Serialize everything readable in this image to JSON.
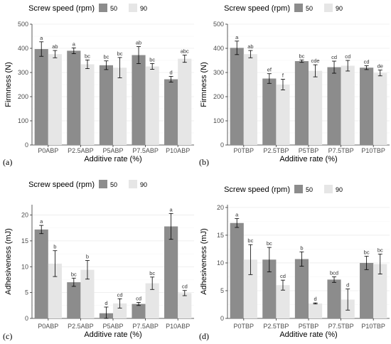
{
  "colors": {
    "series_50": "#8c8c8c",
    "series_90": "#e6e6e6",
    "panel_bg": "#ffffff",
    "grid": "#ebebeb",
    "axis": "#333333",
    "errorbar": "#000000"
  },
  "chart_data": [
    {
      "panel": "(a)",
      "type": "bar",
      "legend_title": "Screw speed (rpm)",
      "legend_placement": "top",
      "xlabel": "Additive rate (%)",
      "ylabel": "Firmness (N)",
      "ylim": [
        0,
        500
      ],
      "yticks": [
        0,
        100,
        200,
        300,
        400,
        500
      ],
      "categories": [
        "P0ABP",
        "P2.5ABP",
        "P5ABP",
        "P7.5ABP",
        "P10ABP"
      ],
      "series": [
        {
          "name": "50",
          "values": [
            397,
            390,
            330,
            372,
            272
          ],
          "errors": [
            30,
            12,
            18,
            35,
            12
          ],
          "labels": [
            "a",
            "a",
            "bc",
            "ab",
            "d"
          ]
        },
        {
          "name": "90",
          "values": [
            376,
            334,
            320,
            325,
            357
          ],
          "errors": [
            15,
            18,
            42,
            12,
            15
          ],
          "labels": [
            "ab",
            "bc",
            "bc",
            "bc",
            "abc"
          ]
        }
      ]
    },
    {
      "panel": "(b)",
      "type": "bar",
      "legend_title": "Screw speed (rpm)",
      "legend_placement": "top",
      "xlabel": "Additive rate (%)",
      "ylabel": "Firmness (N)",
      "ylim": [
        0,
        500
      ],
      "yticks": [
        0,
        100,
        200,
        300,
        400,
        500
      ],
      "categories": [
        "P0TBP",
        "P2.5TBP",
        "P5TBP",
        "P7.5TBP",
        "P10TBP"
      ],
      "series": [
        {
          "name": "50",
          "values": [
            402,
            275,
            347,
            322,
            320
          ],
          "errors": [
            28,
            20,
            5,
            25,
            8
          ],
          "labels": [
            "a",
            "ef",
            "bc",
            "cd",
            "cd"
          ]
        },
        {
          "name": "90",
          "values": [
            376,
            250,
            307,
            328,
            298
          ],
          "errors": [
            15,
            22,
            25,
            22,
            12
          ],
          "labels": [
            "ab",
            "f",
            "cde",
            "cd",
            "de"
          ]
        }
      ]
    },
    {
      "panel": "(c)",
      "type": "bar",
      "legend_title": "Screw speed (rpm)",
      "legend_placement": "top",
      "xlabel": "Additive rate (%)",
      "ylabel": "Adhesiveness (mJ)",
      "ylim": [
        0,
        22
      ],
      "yticks": [
        0,
        5,
        10,
        15,
        20
      ],
      "categories": [
        "P0ABP",
        "P2.5ABP",
        "P5ABP",
        "P7.5ABP",
        "P10ABP"
      ],
      "series": [
        {
          "name": "50",
          "values": [
            17.2,
            7.0,
            1.0,
            2.8,
            17.8
          ],
          "errors": [
            0.8,
            0.8,
            1.2,
            0.3,
            2.5
          ],
          "labels": [
            "a",
            "bc",
            "d",
            "cd",
            "a"
          ]
        },
        {
          "name": "90",
          "values": [
            10.6,
            9.4,
            2.9,
            6.8,
            4.9
          ],
          "errors": [
            2.5,
            1.8,
            0.9,
            1.2,
            0.5
          ],
          "labels": [
            "b",
            "b",
            "cd",
            "bc",
            "cd"
          ]
        }
      ]
    },
    {
      "panel": "(d)",
      "type": "bar",
      "legend_title": "Screw speed (rpm)",
      "legend_placement": "top",
      "xlabel": "Additive rate (%)",
      "ylabel": "Adhesiveness (mJ)",
      "ylim": [
        0,
        20.5
      ],
      "yticks": [
        0,
        5,
        10,
        15,
        20
      ],
      "categories": [
        "P0TBP",
        "P2.5TBP",
        "P5TBP",
        "P7.5TBP",
        "P10TBP"
      ],
      "series": [
        {
          "name": "50",
          "values": [
            17.2,
            10.6,
            10.7,
            7.0,
            10.0
          ],
          "errors": [
            0.8,
            2.2,
            1.3,
            0.5,
            1.2
          ],
          "labels": [
            "a",
            "bc",
            "b",
            "bcd",
            "bc"
          ]
        },
        {
          "name": "90",
          "values": [
            10.6,
            6.0,
            2.7,
            3.4,
            9.8
          ],
          "errors": [
            2.7,
            0.9,
            0.1,
            1.9,
            1.8
          ],
          "labels": [
            "bc",
            "cd",
            "d",
            "d",
            "bc"
          ]
        }
      ]
    }
  ]
}
